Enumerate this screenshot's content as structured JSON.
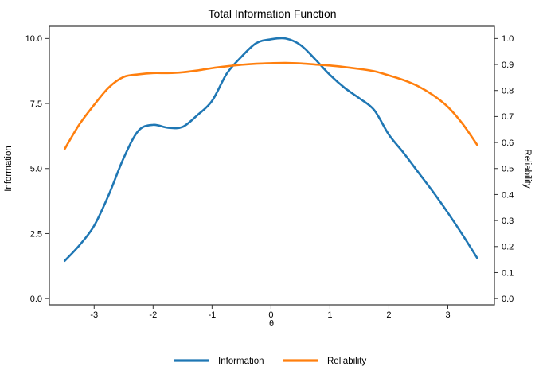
{
  "title": "Total Information Function",
  "axes": {
    "x_label": "θ",
    "y_left_label": "Information",
    "y_right_label": "Reliability",
    "x_ticks": [
      -3,
      -2,
      -1,
      0,
      1,
      2,
      3
    ],
    "y_left_ticks": [
      0.0,
      2.5,
      5.0,
      7.5,
      10.0
    ],
    "y_right_ticks": [
      0.0,
      0.1,
      0.2,
      0.3,
      0.4,
      0.5,
      0.6,
      0.7,
      0.8,
      0.9,
      1.0
    ]
  },
  "legend": {
    "items": [
      {
        "label": "Information",
        "color": "#1f77b4"
      },
      {
        "label": "Reliability",
        "color": "#ff7f0e"
      }
    ]
  },
  "colors": {
    "information": "#1f77b4",
    "reliability": "#ff7f0e",
    "axis": "#333333",
    "text": "#000000"
  },
  "chart_data": {
    "type": "line",
    "title": "Total Information Function",
    "xlabel": "θ",
    "ylabel_left": "Information",
    "ylabel_right": "Reliability",
    "x_range_shown": [
      -3.76,
      3.79
    ],
    "y_left_range_shown": [
      -0.24,
      10.47
    ],
    "y_right_range_shown": [
      -0.024,
      1.047
    ],
    "grid": false,
    "legend_position": "bottom-center",
    "x": [
      -3.5,
      -3.25,
      -3.0,
      -2.75,
      -2.5,
      -2.25,
      -2.0,
      -1.75,
      -1.5,
      -1.25,
      -1.0,
      -0.75,
      -0.5,
      -0.25,
      0.0,
      0.25,
      0.5,
      0.75,
      1.0,
      1.25,
      1.5,
      1.75,
      2.0,
      2.25,
      2.5,
      2.75,
      3.0,
      3.25,
      3.5
    ],
    "series": [
      {
        "name": "Information",
        "axis": "left",
        "color": "#1f77b4",
        "values": [
          1.45,
          2.05,
          2.8,
          4.0,
          5.4,
          6.45,
          6.68,
          6.57,
          6.6,
          7.05,
          7.6,
          8.65,
          9.3,
          9.82,
          9.97,
          10.0,
          9.75,
          9.2,
          8.6,
          8.1,
          7.7,
          7.25,
          6.3,
          5.6,
          4.85,
          4.1,
          3.3,
          2.45,
          1.55
        ]
      },
      {
        "name": "Reliability",
        "axis": "right",
        "color": "#ff7f0e",
        "values": [
          0.575,
          0.67,
          0.745,
          0.812,
          0.852,
          0.862,
          0.867,
          0.867,
          0.87,
          0.877,
          0.886,
          0.893,
          0.899,
          0.903,
          0.905,
          0.906,
          0.904,
          0.9,
          0.896,
          0.89,
          0.883,
          0.874,
          0.858,
          0.84,
          0.816,
          0.782,
          0.737,
          0.672,
          0.59
        ]
      }
    ]
  }
}
